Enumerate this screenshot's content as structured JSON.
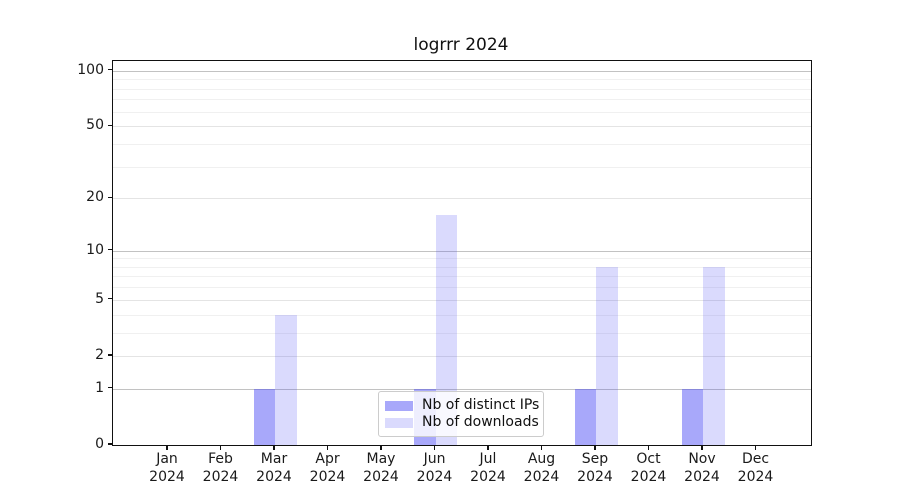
{
  "chart_data": {
    "type": "bar",
    "title": "logrrr 2024",
    "categories": [
      "Jan",
      "Feb",
      "Mar",
      "Apr",
      "May",
      "Jun",
      "Jul",
      "Aug",
      "Sep",
      "Oct",
      "Nov",
      "Dec"
    ],
    "category_year": "2024",
    "series": [
      {
        "name": "Nb of distinct IPs",
        "color": "rgba(70,70,245,0.47)",
        "values": [
          0,
          0,
          1,
          0,
          0,
          1,
          0,
          0,
          1,
          0,
          1,
          0
        ]
      },
      {
        "name": "Nb of downloads",
        "color": "rgba(70,70,245,0.20)",
        "values": [
          0,
          0,
          4,
          0,
          0,
          16,
          0,
          0,
          8,
          0,
          8,
          0
        ]
      }
    ],
    "xlabel": "",
    "ylabel": "",
    "yscale": "log1p",
    "ylim": [
      0,
      113
    ],
    "yticks": [
      0,
      1,
      2,
      5,
      10,
      20,
      50,
      100
    ],
    "grid_values": [
      1,
      2,
      3,
      4,
      5,
      6,
      7,
      8,
      9,
      10,
      20,
      30,
      40,
      50,
      60,
      70,
      80,
      90,
      100
    ],
    "grid_on": true,
    "legend_position": "lower center",
    "colors": {
      "bar_distinct_ips": "#a9a9f8",
      "bar_downloads": "#d9d9fa",
      "grid_major": "#c2c2c2",
      "grid_labeled": "#e4e4e4",
      "grid_minor": "#f0f0f0",
      "spine": "#111111"
    }
  }
}
